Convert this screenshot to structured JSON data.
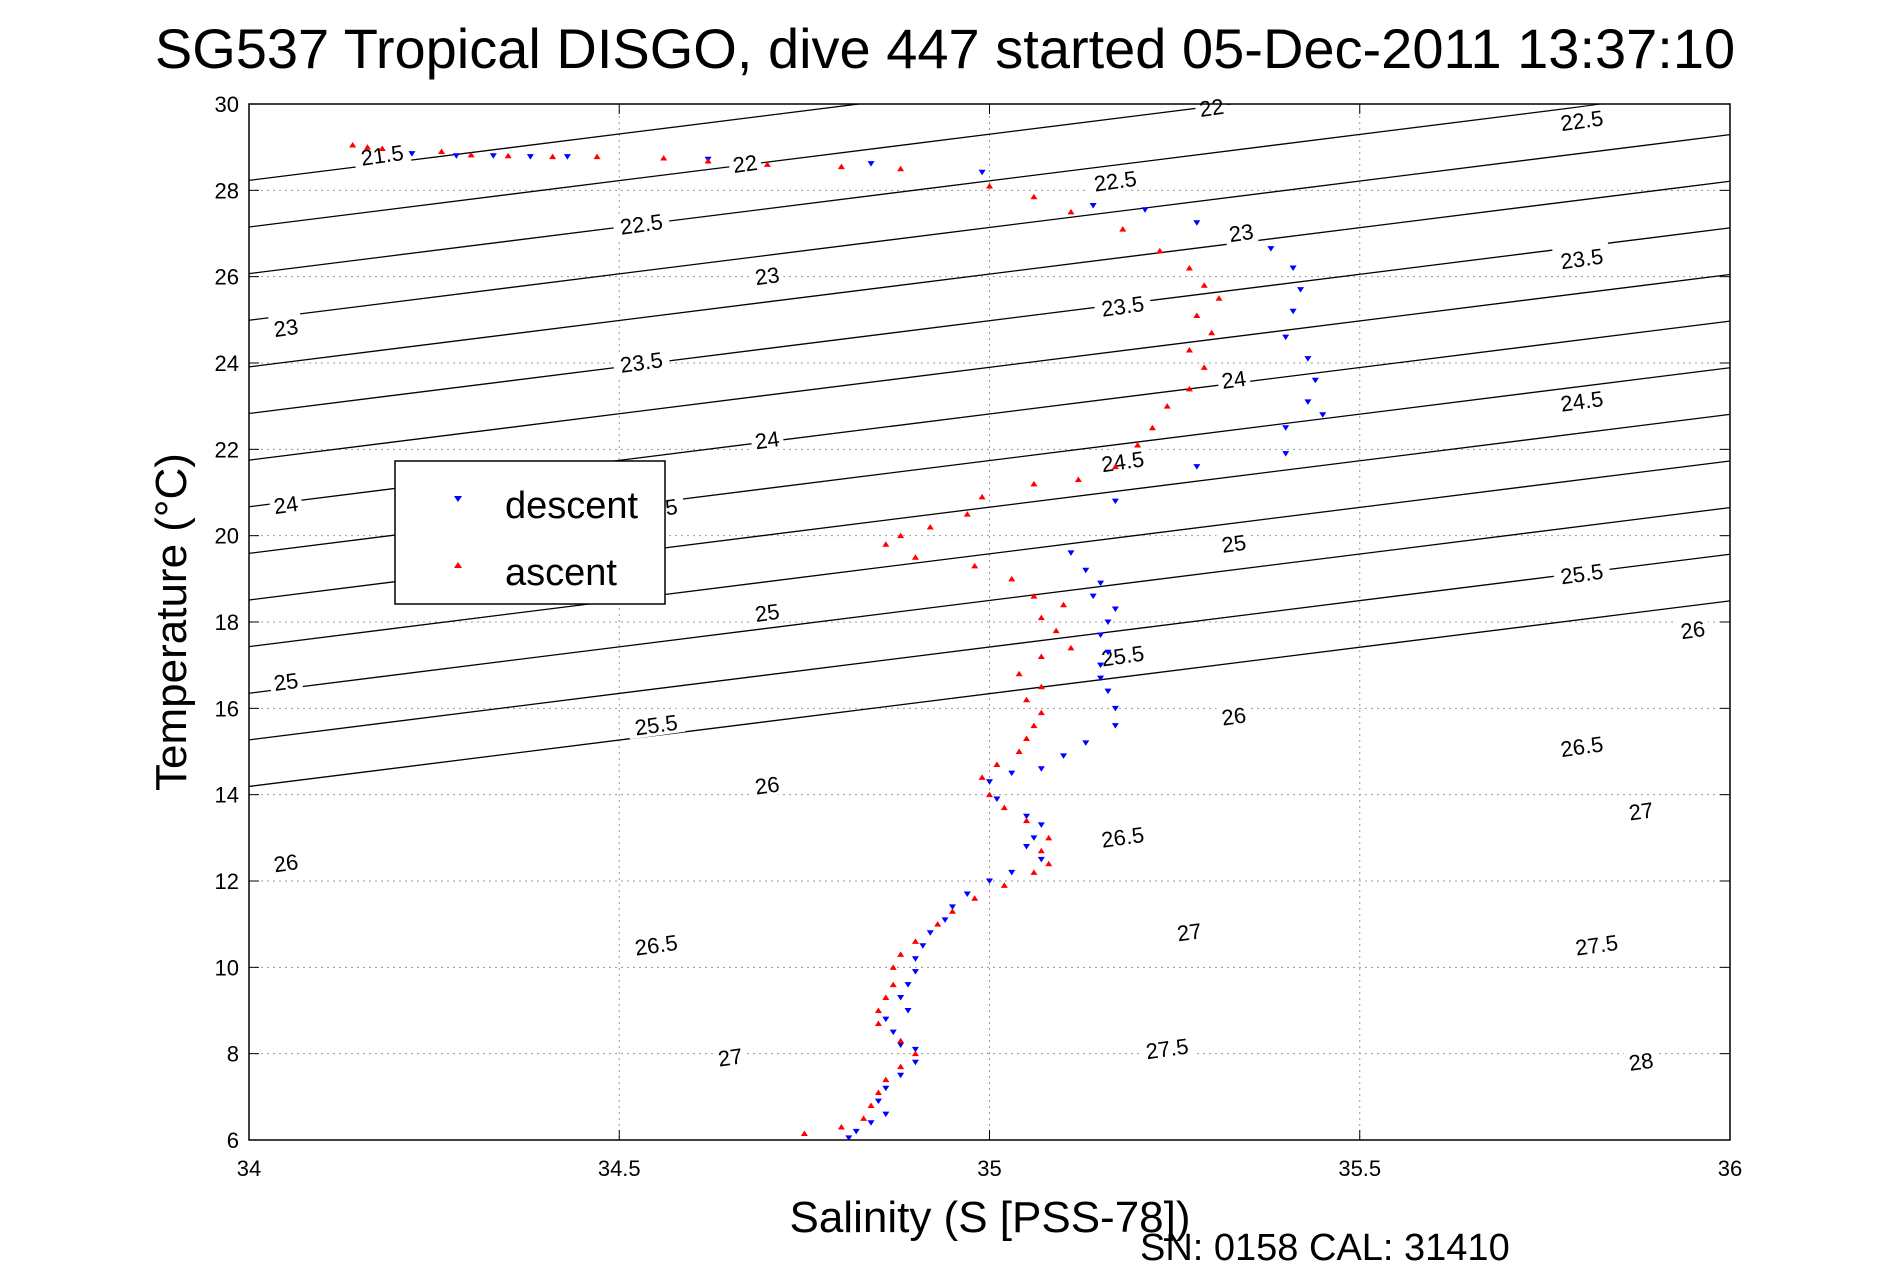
{
  "chart_data": {
    "type": "scatter",
    "title": "SG537 Tropical DISGO, dive 447 started 05-Dec-2011 13:37:10",
    "xlabel": "Salinity (S [PSS-78])",
    "ylabel": "Temperature (°C)",
    "xlim": [
      34,
      36
    ],
    "ylim": [
      6,
      30
    ],
    "xticks": [
      "34",
      "34.5",
      "35",
      "35.5",
      "36"
    ],
    "yticks": [
      "6",
      "8",
      "10",
      "12",
      "14",
      "16",
      "18",
      "20",
      "22",
      "24",
      "26",
      "28",
      "30"
    ],
    "grid": true,
    "legend_position": "middle-left",
    "footer": "SN: 0158  CAL: 31410",
    "colors": {
      "descent": "#0000ff",
      "ascent": "#ff0000",
      "contour": "#000000",
      "grid": "#9a9a9a"
    },
    "series": [
      {
        "name": "descent",
        "marker": "triangle-down",
        "points": [
          [
            34.22,
            28.85
          ],
          [
            34.28,
            28.8
          ],
          [
            34.33,
            28.8
          ],
          [
            34.38,
            28.78
          ],
          [
            34.43,
            28.78
          ],
          [
            34.62,
            28.72
          ],
          [
            34.84,
            28.62
          ],
          [
            34.99,
            28.42
          ],
          [
            35.14,
            27.65
          ],
          [
            35.21,
            27.55
          ],
          [
            35.28,
            27.25
          ],
          [
            35.38,
            26.65
          ],
          [
            35.41,
            26.2
          ],
          [
            35.42,
            25.7
          ],
          [
            35.41,
            25.2
          ],
          [
            35.4,
            24.6
          ],
          [
            35.43,
            24.1
          ],
          [
            35.44,
            23.6
          ],
          [
            35.43,
            23.1
          ],
          [
            35.45,
            22.8
          ],
          [
            35.4,
            22.5
          ],
          [
            35.4,
            21.9
          ],
          [
            35.28,
            21.6
          ],
          [
            35.17,
            20.8
          ],
          [
            35.11,
            19.6
          ],
          [
            35.13,
            19.2
          ],
          [
            35.15,
            18.9
          ],
          [
            35.14,
            18.6
          ],
          [
            35.17,
            18.3
          ],
          [
            35.16,
            18.0
          ],
          [
            35.15,
            17.7
          ],
          [
            35.16,
            17.3
          ],
          [
            35.15,
            17.0
          ],
          [
            35.15,
            16.7
          ],
          [
            35.16,
            16.4
          ],
          [
            35.17,
            16.0
          ],
          [
            35.17,
            15.6
          ],
          [
            35.13,
            15.2
          ],
          [
            35.1,
            14.9
          ],
          [
            35.07,
            14.6
          ],
          [
            35.03,
            14.5
          ],
          [
            35.0,
            14.3
          ],
          [
            35.01,
            13.9
          ],
          [
            35.05,
            13.5
          ],
          [
            35.07,
            13.3
          ],
          [
            35.06,
            13.0
          ],
          [
            35.05,
            12.8
          ],
          [
            35.07,
            12.5
          ],
          [
            35.03,
            12.2
          ],
          [
            35.0,
            12.0
          ],
          [
            34.97,
            11.7
          ],
          [
            34.95,
            11.4
          ],
          [
            34.94,
            11.1
          ],
          [
            34.92,
            10.8
          ],
          [
            34.91,
            10.5
          ],
          [
            34.9,
            10.2
          ],
          [
            34.9,
            9.9
          ],
          [
            34.89,
            9.6
          ],
          [
            34.88,
            9.3
          ],
          [
            34.89,
            9.0
          ],
          [
            34.86,
            8.8
          ],
          [
            34.87,
            8.5
          ],
          [
            34.88,
            8.2
          ],
          [
            34.9,
            8.1
          ],
          [
            34.9,
            7.8
          ],
          [
            34.88,
            7.5
          ],
          [
            34.86,
            7.2
          ],
          [
            34.85,
            6.9
          ],
          [
            34.86,
            6.6
          ],
          [
            34.84,
            6.4
          ],
          [
            34.82,
            6.2
          ],
          [
            34.81,
            6.05
          ]
        ]
      },
      {
        "name": "ascent",
        "marker": "triangle-up",
        "points": [
          [
            34.14,
            29.05
          ],
          [
            34.16,
            29.0
          ],
          [
            34.18,
            28.97
          ],
          [
            34.26,
            28.9
          ],
          [
            34.3,
            28.82
          ],
          [
            34.35,
            28.8
          ],
          [
            34.41,
            28.78
          ],
          [
            34.47,
            28.78
          ],
          [
            34.56,
            28.75
          ],
          [
            34.62,
            28.68
          ],
          [
            34.7,
            28.6
          ],
          [
            34.8,
            28.55
          ],
          [
            34.88,
            28.5
          ],
          [
            35.0,
            28.1
          ],
          [
            35.06,
            27.85
          ],
          [
            35.11,
            27.5
          ],
          [
            35.18,
            27.1
          ],
          [
            35.23,
            26.6
          ],
          [
            35.27,
            26.2
          ],
          [
            35.29,
            25.8
          ],
          [
            35.31,
            25.5
          ],
          [
            35.28,
            25.1
          ],
          [
            35.3,
            24.7
          ],
          [
            35.27,
            24.3
          ],
          [
            35.29,
            23.9
          ],
          [
            35.27,
            23.4
          ],
          [
            35.24,
            23.0
          ],
          [
            35.22,
            22.5
          ],
          [
            35.2,
            22.1
          ],
          [
            35.17,
            21.6
          ],
          [
            35.12,
            21.3
          ],
          [
            35.06,
            21.2
          ],
          [
            34.99,
            20.9
          ],
          [
            34.97,
            20.5
          ],
          [
            34.92,
            20.2
          ],
          [
            34.88,
            20.0
          ],
          [
            34.86,
            19.8
          ],
          [
            34.9,
            19.5
          ],
          [
            34.98,
            19.3
          ],
          [
            35.03,
            19.0
          ],
          [
            35.06,
            18.6
          ],
          [
            35.1,
            18.4
          ],
          [
            35.07,
            18.1
          ],
          [
            35.09,
            17.8
          ],
          [
            35.11,
            17.4
          ],
          [
            35.07,
            17.2
          ],
          [
            35.04,
            16.8
          ],
          [
            35.07,
            16.5
          ],
          [
            35.05,
            16.2
          ],
          [
            35.07,
            15.9
          ],
          [
            35.06,
            15.6
          ],
          [
            35.05,
            15.3
          ],
          [
            35.04,
            15.0
          ],
          [
            35.01,
            14.7
          ],
          [
            34.99,
            14.4
          ],
          [
            35.0,
            14.0
          ],
          [
            35.02,
            13.7
          ],
          [
            35.05,
            13.4
          ],
          [
            35.08,
            13.0
          ],
          [
            35.07,
            12.7
          ],
          [
            35.08,
            12.4
          ],
          [
            35.06,
            12.2
          ],
          [
            35.02,
            11.9
          ],
          [
            34.98,
            11.6
          ],
          [
            34.95,
            11.3
          ],
          [
            34.93,
            11.0
          ],
          [
            34.9,
            10.6
          ],
          [
            34.88,
            10.3
          ],
          [
            34.87,
            10.0
          ],
          [
            34.87,
            9.6
          ],
          [
            34.86,
            9.3
          ],
          [
            34.85,
            9.0
          ],
          [
            34.85,
            8.7
          ],
          [
            34.88,
            8.3
          ],
          [
            34.9,
            8.0
          ],
          [
            34.88,
            7.7
          ],
          [
            34.86,
            7.4
          ],
          [
            34.85,
            7.1
          ],
          [
            34.84,
            6.8
          ],
          [
            34.83,
            6.5
          ],
          [
            34.8,
            6.3
          ],
          [
            34.75,
            6.15
          ]
        ]
      }
    ],
    "contours": [
      {
        "level": "21.5",
        "points": [
          [
            34.0,
            28.23
          ],
          [
            36.0,
            32.53
          ]
        ],
        "labels": [
          [
            34.18,
            28.8
          ]
        ]
      },
      {
        "level": "22",
        "points": [
          [
            34.0,
            27.15
          ],
          [
            36.0,
            31.45
          ]
        ],
        "labels": [
          [
            34.67,
            28.6
          ],
          [
            35.3,
            29.9
          ]
        ]
      },
      {
        "level": "22.5",
        "points": [
          [
            34.0,
            26.07
          ],
          [
            36.0,
            30.37
          ]
        ],
        "labels": [
          [
            34.53,
            27.2
          ],
          [
            35.17,
            28.2
          ],
          [
            35.8,
            29.6
          ]
        ]
      },
      {
        "level": "23",
        "points": [
          [
            34.0,
            24.99
          ],
          [
            36.0,
            29.29
          ]
        ],
        "labels": [
          [
            34.05,
            24.8
          ],
          [
            34.7,
            26.0
          ],
          [
            35.34,
            27.0
          ]
        ]
      },
      {
        "level": "23.5",
        "points": [
          [
            34.0,
            23.91
          ],
          [
            36.0,
            28.21
          ]
        ],
        "labels": [
          [
            34.53,
            24.0
          ],
          [
            35.18,
            25.3
          ],
          [
            35.8,
            26.4
          ]
        ]
      },
      {
        "level": "24",
        "points": [
          [
            34.0,
            22.83
          ],
          [
            36.0,
            27.13
          ]
        ],
        "labels": [
          [
            34.05,
            20.7
          ],
          [
            34.7,
            22.2
          ],
          [
            35.33,
            23.6
          ]
        ]
      },
      {
        "level": "24.5",
        "points": [
          [
            34.0,
            21.75
          ],
          [
            36.0,
            26.05
          ]
        ],
        "labels": [
          [
            34.55,
            20.6
          ],
          [
            35.18,
            21.7
          ],
          [
            35.8,
            23.1
          ]
        ]
      },
      {
        "level": "25",
        "points": [
          [
            34.0,
            20.67
          ],
          [
            36.0,
            24.97
          ]
        ],
        "labels": [
          [
            34.05,
            16.6
          ],
          [
            34.7,
            18.2
          ],
          [
            35.33,
            19.8
          ]
        ]
      },
      {
        "level": "25.5",
        "points": [
          [
            34.0,
            19.59
          ],
          [
            36.0,
            23.89
          ]
        ],
        "labels": [
          [
            34.55,
            15.6
          ],
          [
            35.18,
            17.2
          ],
          [
            35.8,
            19.1
          ]
        ]
      },
      {
        "level": "26",
        "points": [
          [
            34.0,
            18.51
          ],
          [
            36.0,
            22.81
          ]
        ],
        "labels": [
          [
            34.05,
            12.4
          ],
          [
            34.7,
            14.2
          ],
          [
            35.33,
            15.8
          ],
          [
            35.95,
            17.8
          ]
        ]
      },
      {
        "level": "26.5",
        "points": [
          [
            34.0,
            17.43
          ],
          [
            36.0,
            21.73
          ]
        ],
        "labels": [
          [
            34.55,
            10.5
          ],
          [
            35.18,
            13.0
          ],
          [
            35.8,
            15.1
          ]
        ]
      },
      {
        "level": "27",
        "points": [
          [
            34.0,
            16.35
          ],
          [
            36.0,
            20.65
          ]
        ],
        "labels": [
          [
            34.65,
            7.9
          ],
          [
            35.27,
            10.8
          ],
          [
            35.88,
            13.6
          ]
        ]
      },
      {
        "level": "27.5",
        "points": [
          [
            34.0,
            15.27
          ],
          [
            36.0,
            19.57
          ]
        ],
        "labels": [
          [
            35.24,
            8.1
          ],
          [
            35.82,
            10.5
          ]
        ]
      },
      {
        "level": "28",
        "points": [
          [
            34.0,
            14.19
          ],
          [
            36.0,
            18.49
          ]
        ],
        "labels": [
          [
            35.88,
            7.8
          ]
        ]
      }
    ]
  }
}
